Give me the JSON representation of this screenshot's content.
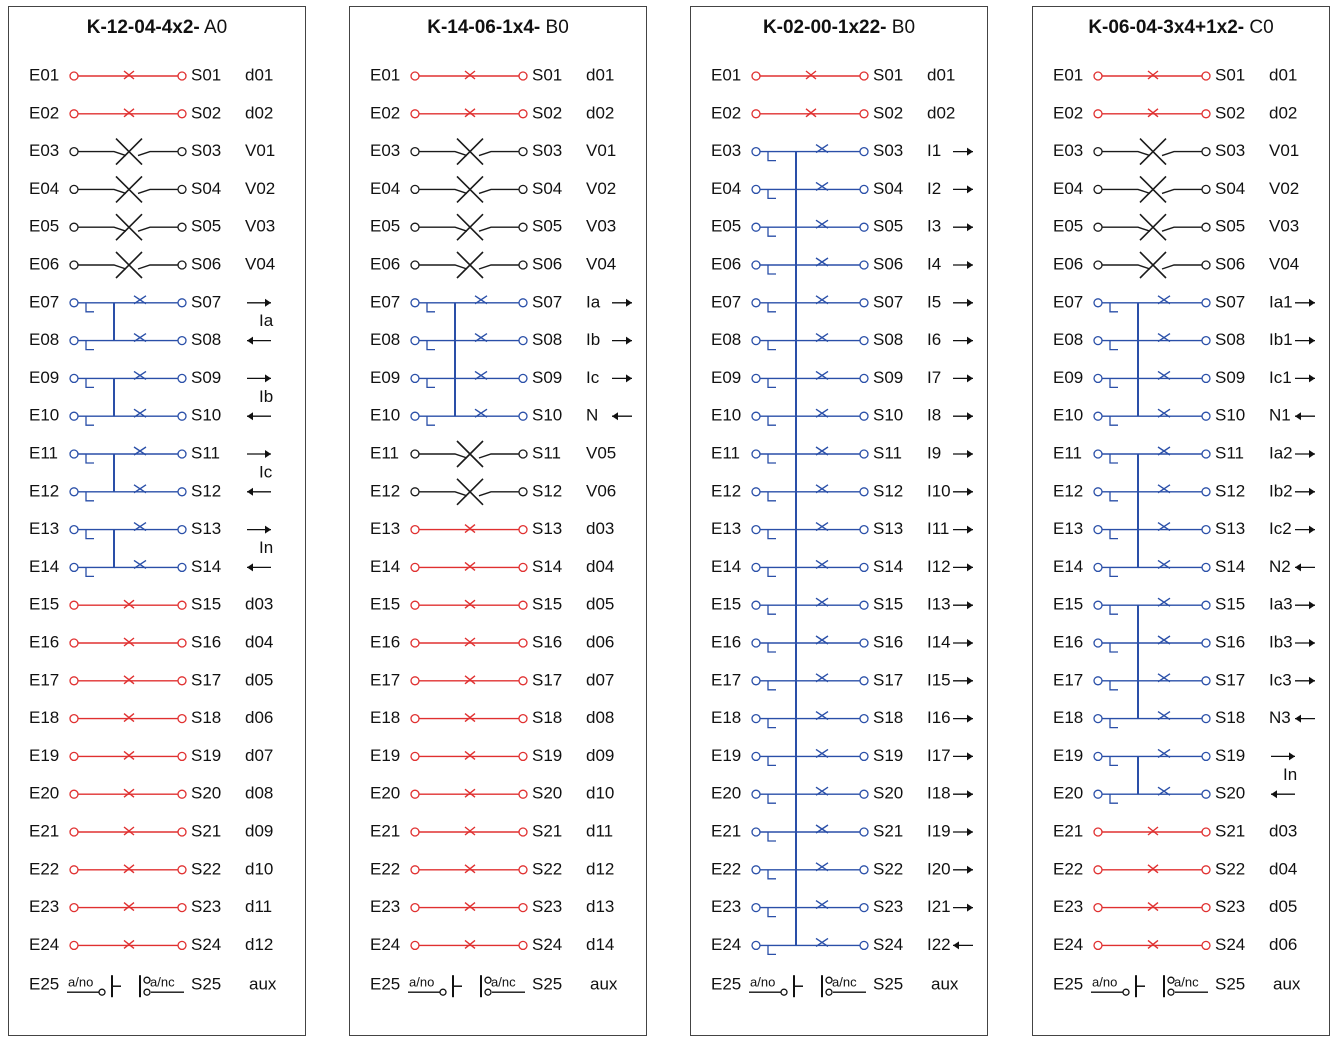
{
  "colors": {
    "red": "#e03030",
    "black": "#1a1a1a",
    "blue": "#2a4fa8",
    "text": "#111111"
  },
  "aux_row": {
    "left_label": "E25",
    "no_label": "a/no",
    "nc_label": "a/nc",
    "right_label": "S25",
    "function": "aux"
  },
  "panels": [
    {
      "code": "K-12-04-4x2-",
      "variant": "A0",
      "rows": [
        {
          "e": "E01",
          "s": "S01",
          "color": "red",
          "label": "d01"
        },
        {
          "e": "E02",
          "s": "S02",
          "color": "red",
          "label": "d02"
        },
        {
          "e": "E03",
          "s": "S03",
          "color": "black",
          "label": "V01"
        },
        {
          "e": "E04",
          "s": "S04",
          "color": "black",
          "label": "V02"
        },
        {
          "e": "E05",
          "s": "S05",
          "color": "black",
          "label": "V03"
        },
        {
          "e": "E06",
          "s": "S06",
          "color": "black",
          "label": "V04"
        },
        {
          "e": "E07",
          "s": "S07",
          "color": "blue",
          "label": "",
          "arrow": "out"
        },
        {
          "e": "E08",
          "s": "S08",
          "color": "blue",
          "label": "",
          "arrow": "in"
        },
        {
          "e": "E09",
          "s": "S09",
          "color": "blue",
          "label": "",
          "arrow": "out"
        },
        {
          "e": "E10",
          "s": "S10",
          "color": "blue",
          "label": "",
          "arrow": "in"
        },
        {
          "e": "E11",
          "s": "S11",
          "color": "blue",
          "label": "",
          "arrow": "out"
        },
        {
          "e": "E12",
          "s": "S12",
          "color": "blue",
          "label": "",
          "arrow": "in"
        },
        {
          "e": "E13",
          "s": "S13",
          "color": "blue",
          "label": "",
          "arrow": "out"
        },
        {
          "e": "E14",
          "s": "S14",
          "color": "blue",
          "label": "",
          "arrow": "in"
        },
        {
          "e": "E15",
          "s": "S15",
          "color": "red",
          "label": "d03"
        },
        {
          "e": "E16",
          "s": "S16",
          "color": "red",
          "label": "d04"
        },
        {
          "e": "E17",
          "s": "S17",
          "color": "red",
          "label": "d05"
        },
        {
          "e": "E18",
          "s": "S18",
          "color": "red",
          "label": "d06"
        },
        {
          "e": "E19",
          "s": "S19",
          "color": "red",
          "label": "d07"
        },
        {
          "e": "E20",
          "s": "S20",
          "color": "red",
          "label": "d08"
        },
        {
          "e": "E21",
          "s": "S21",
          "color": "red",
          "label": "d09"
        },
        {
          "e": "E22",
          "s": "S22",
          "color": "red",
          "label": "d10"
        },
        {
          "e": "E23",
          "s": "S23",
          "color": "red",
          "label": "d11"
        },
        {
          "e": "E24",
          "s": "S24",
          "color": "red",
          "label": "d12"
        }
      ],
      "groups": [
        {
          "start": 6,
          "end": 7,
          "label": "Ia"
        },
        {
          "start": 8,
          "end": 9,
          "label": "Ib"
        },
        {
          "start": 10,
          "end": 11,
          "label": "Ic"
        },
        {
          "start": 12,
          "end": 13,
          "label": "In"
        }
      ]
    },
    {
      "code": "K-14-06-1x4-",
      "variant": "B0",
      "rows": [
        {
          "e": "E01",
          "s": "S01",
          "color": "red",
          "label": "d01"
        },
        {
          "e": "E02",
          "s": "S02",
          "color": "red",
          "label": "d02"
        },
        {
          "e": "E03",
          "s": "S03",
          "color": "black",
          "label": "V01"
        },
        {
          "e": "E04",
          "s": "S04",
          "color": "black",
          "label": "V02"
        },
        {
          "e": "E05",
          "s": "S05",
          "color": "black",
          "label": "V03"
        },
        {
          "e": "E06",
          "s": "S06",
          "color": "black",
          "label": "V04"
        },
        {
          "e": "E07",
          "s": "S07",
          "color": "blue",
          "label": "Ia",
          "arrow": "out"
        },
        {
          "e": "E08",
          "s": "S08",
          "color": "blue",
          "label": "Ib",
          "arrow": "out"
        },
        {
          "e": "E09",
          "s": "S09",
          "color": "blue",
          "label": "Ic",
          "arrow": "out"
        },
        {
          "e": "E10",
          "s": "S10",
          "color": "blue",
          "label": "N",
          "arrow": "in"
        },
        {
          "e": "E11",
          "s": "S11",
          "color": "black",
          "label": "V05"
        },
        {
          "e": "E12",
          "s": "S12",
          "color": "black",
          "label": "V06"
        },
        {
          "e": "E13",
          "s": "S13",
          "color": "red",
          "label": "d03"
        },
        {
          "e": "E14",
          "s": "S14",
          "color": "red",
          "label": "d04"
        },
        {
          "e": "E15",
          "s": "S15",
          "color": "red",
          "label": "d05"
        },
        {
          "e": "E16",
          "s": "S16",
          "color": "red",
          "label": "d06"
        },
        {
          "e": "E17",
          "s": "S17",
          "color": "red",
          "label": "d07"
        },
        {
          "e": "E18",
          "s": "S18",
          "color": "red",
          "label": "d08"
        },
        {
          "e": "E19",
          "s": "S19",
          "color": "red",
          "label": "d09"
        },
        {
          "e": "E20",
          "s": "S20",
          "color": "red",
          "label": "d10"
        },
        {
          "e": "E21",
          "s": "S21",
          "color": "red",
          "label": "d11"
        },
        {
          "e": "E22",
          "s": "S22",
          "color": "red",
          "label": "d12"
        },
        {
          "e": "E23",
          "s": "S23",
          "color": "red",
          "label": "d13"
        },
        {
          "e": "E24",
          "s": "S24",
          "color": "red",
          "label": "d14"
        }
      ],
      "groups": [
        {
          "start": 6,
          "end": 9,
          "label": ""
        }
      ]
    },
    {
      "code": "K-02-00-1x22-",
      "variant": "B0",
      "rows": [
        {
          "e": "E01",
          "s": "S01",
          "color": "red",
          "label": "d01"
        },
        {
          "e": "E02",
          "s": "S02",
          "color": "red",
          "label": "d02"
        },
        {
          "e": "E03",
          "s": "S03",
          "color": "blue",
          "label": "I1",
          "arrow": "out"
        },
        {
          "e": "E04",
          "s": "S04",
          "color": "blue",
          "label": "I2",
          "arrow": "out"
        },
        {
          "e": "E05",
          "s": "S05",
          "color": "blue",
          "label": "I3",
          "arrow": "out"
        },
        {
          "e": "E06",
          "s": "S06",
          "color": "blue",
          "label": "I4",
          "arrow": "out"
        },
        {
          "e": "E07",
          "s": "S07",
          "color": "blue",
          "label": "I5",
          "arrow": "out"
        },
        {
          "e": "E08",
          "s": "S08",
          "color": "blue",
          "label": "I6",
          "arrow": "out"
        },
        {
          "e": "E09",
          "s": "S09",
          "color": "blue",
          "label": "I7",
          "arrow": "out"
        },
        {
          "e": "E10",
          "s": "S10",
          "color": "blue",
          "label": "I8",
          "arrow": "out"
        },
        {
          "e": "E11",
          "s": "S11",
          "color": "blue",
          "label": "I9",
          "arrow": "out"
        },
        {
          "e": "E12",
          "s": "S12",
          "color": "blue",
          "label": "I10",
          "arrow": "out"
        },
        {
          "e": "E13",
          "s": "S13",
          "color": "blue",
          "label": "I11",
          "arrow": "out"
        },
        {
          "e": "E14",
          "s": "S14",
          "color": "blue",
          "label": "I12",
          "arrow": "out"
        },
        {
          "e": "E15",
          "s": "S15",
          "color": "blue",
          "label": "I13",
          "arrow": "out"
        },
        {
          "e": "E16",
          "s": "S16",
          "color": "blue",
          "label": "I14",
          "arrow": "out"
        },
        {
          "e": "E17",
          "s": "S17",
          "color": "blue",
          "label": "I15",
          "arrow": "out"
        },
        {
          "e": "E18",
          "s": "S18",
          "color": "blue",
          "label": "I16",
          "arrow": "out"
        },
        {
          "e": "E19",
          "s": "S19",
          "color": "blue",
          "label": "I17",
          "arrow": "out"
        },
        {
          "e": "E20",
          "s": "S20",
          "color": "blue",
          "label": "I18",
          "arrow": "out"
        },
        {
          "e": "E21",
          "s": "S21",
          "color": "blue",
          "label": "I19",
          "arrow": "out"
        },
        {
          "e": "E22",
          "s": "S22",
          "color": "blue",
          "label": "I20",
          "arrow": "out"
        },
        {
          "e": "E23",
          "s": "S23",
          "color": "blue",
          "label": "I21",
          "arrow": "out"
        },
        {
          "e": "E24",
          "s": "S24",
          "color": "blue",
          "label": "I22",
          "arrow": "in"
        }
      ],
      "groups": [
        {
          "start": 2,
          "end": 23,
          "label": ""
        }
      ]
    },
    {
      "code": "K-06-04-3x4+1x2-",
      "variant": "C0",
      "rows": [
        {
          "e": "E01",
          "s": "S01",
          "color": "red",
          "label": "d01"
        },
        {
          "e": "E02",
          "s": "S02",
          "color": "red",
          "label": "d02"
        },
        {
          "e": "E03",
          "s": "S03",
          "color": "black",
          "label": "V01"
        },
        {
          "e": "E04",
          "s": "S04",
          "color": "black",
          "label": "V02"
        },
        {
          "e": "E05",
          "s": "S05",
          "color": "black",
          "label": "V03"
        },
        {
          "e": "E06",
          "s": "S06",
          "color": "black",
          "label": "V04"
        },
        {
          "e": "E07",
          "s": "S07",
          "color": "blue",
          "label": "Ia1",
          "arrow": "out"
        },
        {
          "e": "E08",
          "s": "S08",
          "color": "blue",
          "label": "Ib1",
          "arrow": "out"
        },
        {
          "e": "E09",
          "s": "S09",
          "color": "blue",
          "label": "Ic1",
          "arrow": "out"
        },
        {
          "e": "E10",
          "s": "S10",
          "color": "blue",
          "label": "N1",
          "arrow": "in"
        },
        {
          "e": "E11",
          "s": "S11",
          "color": "blue",
          "label": "Ia2",
          "arrow": "out"
        },
        {
          "e": "E12",
          "s": "S12",
          "color": "blue",
          "label": "Ib2",
          "arrow": "out"
        },
        {
          "e": "E13",
          "s": "S13",
          "color": "blue",
          "label": "Ic2",
          "arrow": "out"
        },
        {
          "e": "E14",
          "s": "S14",
          "color": "blue",
          "label": "N2",
          "arrow": "in"
        },
        {
          "e": "E15",
          "s": "S15",
          "color": "blue",
          "label": "Ia3",
          "arrow": "out"
        },
        {
          "e": "E16",
          "s": "S16",
          "color": "blue",
          "label": "Ib3",
          "arrow": "out"
        },
        {
          "e": "E17",
          "s": "S17",
          "color": "blue",
          "label": "Ic3",
          "arrow": "out"
        },
        {
          "e": "E18",
          "s": "S18",
          "color": "blue",
          "label": "N3",
          "arrow": "in"
        },
        {
          "e": "E19",
          "s": "S19",
          "color": "blue",
          "label": "",
          "arrow": "out"
        },
        {
          "e": "E20",
          "s": "S20",
          "color": "blue",
          "label": "",
          "arrow": "in"
        },
        {
          "e": "E21",
          "s": "S21",
          "color": "red",
          "label": "d03"
        },
        {
          "e": "E22",
          "s": "S22",
          "color": "red",
          "label": "d04"
        },
        {
          "e": "E23",
          "s": "S23",
          "color": "red",
          "label": "d05"
        },
        {
          "e": "E24",
          "s": "S24",
          "color": "red",
          "label": "d06"
        }
      ],
      "groups": [
        {
          "start": 6,
          "end": 9,
          "label": ""
        },
        {
          "start": 10,
          "end": 13,
          "label": ""
        },
        {
          "start": 14,
          "end": 17,
          "label": ""
        },
        {
          "start": 18,
          "end": 19,
          "label": "In"
        }
      ]
    }
  ]
}
